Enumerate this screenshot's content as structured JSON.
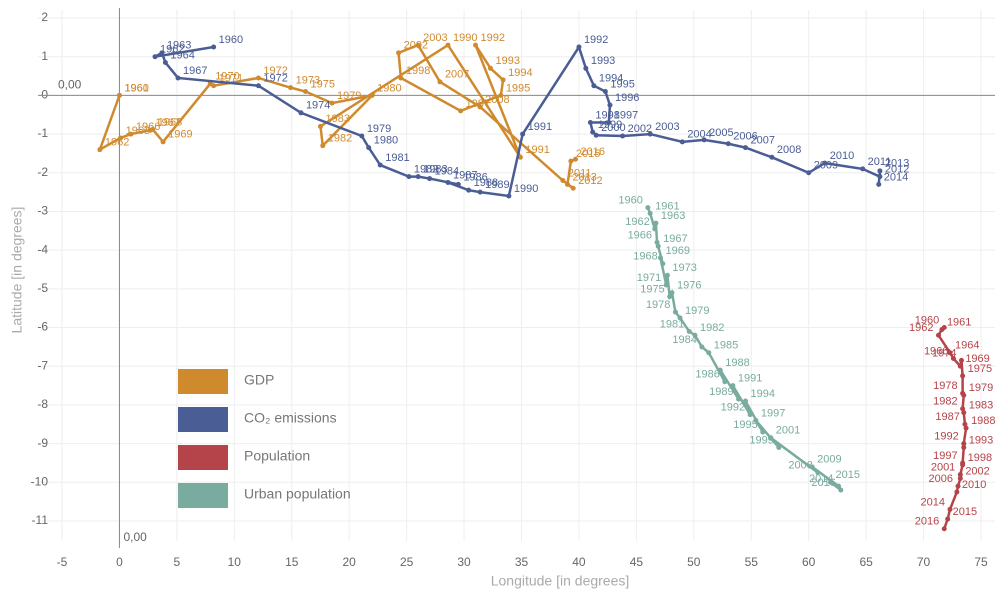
{
  "chart_data": {
    "type": "line",
    "x_label": "Longitude [in degrees]",
    "y_label": "Latitude [in degrees]",
    "xlim": [
      -5,
      75
    ],
    "ylim": [
      -11,
      2
    ],
    "xticks": [
      -5,
      0,
      5,
      10,
      15,
      20,
      25,
      30,
      35,
      40,
      45,
      50,
      55,
      60,
      65,
      70,
      75
    ],
    "yticks": [
      -11,
      -10,
      -9,
      -8,
      -7,
      -6,
      -5,
      -4,
      -3,
      -2,
      -1,
      0,
      1,
      2
    ],
    "grid": true,
    "reference_lines": {
      "x": {
        "value": 0,
        "label": "0,00"
      },
      "y": {
        "value": 0,
        "label": "0,00"
      }
    },
    "legend": "bottom-left",
    "series": [
      {
        "name": "GDP",
        "color": "#d08a2e",
        "labels": [
          "1960",
          "1961",
          "1962",
          "1963",
          "1966",
          "1967",
          "1968",
          "1969",
          "1970",
          "1971",
          "1972",
          "1973",
          "1975",
          "1979",
          "1980",
          "1982",
          "1983",
          "1990",
          "1991",
          "1992",
          "1993",
          "1994",
          "1995",
          "1997",
          "1998",
          "2002",
          "2003",
          "2007",
          "2008",
          "2011",
          "2012",
          "2013",
          "2015",
          "2016"
        ],
        "x": [
          0,
          0,
          -1.7,
          0.1,
          1,
          2.7,
          2.9,
          3.8,
          7.9,
          8.2,
          12.1,
          14.9,
          16.2,
          18.5,
          22,
          17.7,
          17.5,
          28.6,
          34.9,
          31,
          32.3,
          33.4,
          33.2,
          29.7,
          24.5,
          24.3,
          26,
          27.9,
          31.4,
          38.6,
          39.5,
          39,
          39.3,
          39.7
        ],
        "y": [
          0,
          0,
          -1.4,
          -1.1,
          -1.0,
          -0.9,
          -0.88,
          -1.2,
          0.3,
          0.25,
          0.45,
          0.2,
          0.1,
          -0.2,
          0,
          -1.3,
          -0.8,
          1.3,
          -1.6,
          1.3,
          0.7,
          0.4,
          0,
          -0.4,
          0.45,
          1.1,
          1.3,
          0.35,
          -0.3,
          -2.2,
          -2.4,
          -2.3,
          -1.7,
          -1.65
        ]
      },
      {
        "name": "CO₂ emissions",
        "color": "#4a5d94",
        "labels": [
          "1960",
          "1962",
          "1963",
          "1964",
          "1967",
          "1972",
          "1974",
          "1979",
          "1980",
          "1981",
          "1982",
          "1983",
          "1984",
          "1986",
          "1987",
          "1988",
          "1989",
          "1990",
          "1991",
          "1992",
          "1993",
          "1994",
          "1995",
          "1996",
          "1997",
          "1998",
          "1999",
          "2000",
          "2002",
          "2003",
          "2004",
          "2005",
          "2006",
          "2007",
          "2008",
          "2009",
          "2010",
          "2011",
          "2012",
          "2013",
          "2014"
        ],
        "x": [
          8.2,
          3.1,
          3.7,
          4,
          5.1,
          12.1,
          15.8,
          21.1,
          21.7,
          22.7,
          25.2,
          26,
          27,
          29.5,
          28.6,
          30.4,
          31.4,
          33.9,
          35.1,
          40,
          40.6,
          41.3,
          42.3,
          42.7,
          42.6,
          41,
          41.2,
          41.5,
          43.8,
          46.2,
          49,
          50.9,
          53,
          54.5,
          56.8,
          60,
          61.4,
          64.7,
          66.2,
          66.2,
          66.1
        ],
        "y": [
          1.25,
          1.0,
          1.1,
          0.85,
          0.45,
          0.25,
          -0.45,
          -1.05,
          -1.35,
          -1.8,
          -2.1,
          -2.1,
          -2.15,
          -2.3,
          -2.25,
          -2.45,
          -2.5,
          -2.6,
          -1.0,
          1.25,
          0.7,
          0.25,
          0.1,
          -0.25,
          -0.7,
          -0.7,
          -0.95,
          -1.03,
          -1.05,
          -1.0,
          -1.2,
          -1.15,
          -1.25,
          -1.35,
          -1.6,
          -2.0,
          -1.75,
          -1.9,
          -2.1,
          -1.95,
          -2.3
        ]
      },
      {
        "name": "Population",
        "color": "#b5444a",
        "labels": [
          "1960",
          "1961",
          "1962",
          "1964",
          "1966",
          "1969",
          "1974",
          "1975",
          "1978",
          "1979",
          "1982",
          "1983",
          "1987",
          "1988",
          "1992",
          "1993",
          "1997",
          "1998",
          "2001",
          "2002",
          "2006",
          "2010",
          "2014",
          "2015",
          "2016"
        ],
        "x": [
          71.8,
          71.6,
          71.3,
          72.3,
          72.6,
          73.2,
          73.3,
          73.4,
          73.4,
          73.5,
          73.4,
          73.5,
          73.6,
          73.7,
          73.5,
          73.5,
          73.4,
          73.4,
          73.2,
          73.2,
          73.0,
          72.9,
          72.3,
          72.1,
          71.8
        ],
        "y": [
          -6.0,
          -6.05,
          -6.2,
          -6.65,
          -6.8,
          -7.0,
          -6.85,
          -7.25,
          -7.7,
          -7.75,
          -8.1,
          -8.2,
          -8.5,
          -8.6,
          -9.0,
          -9.1,
          -9.5,
          -9.55,
          -9.8,
          -9.9,
          -10.1,
          -10.25,
          -10.7,
          -10.95,
          -11.2
        ]
      },
      {
        "name": "Urban population",
        "color": "#7aab9f",
        "labels": [
          "1960",
          "1961",
          "1962",
          "1963",
          "1966",
          "1967",
          "1968",
          "1969",
          "1971",
          "1973",
          "1975",
          "1976",
          "1978",
          "1979",
          "1981",
          "1982",
          "1984",
          "1985",
          "1986",
          "1988",
          "1989",
          "1991",
          "1992",
          "1994",
          "1995",
          "1997",
          "1999",
          "2001",
          "2008",
          "2009",
          "2014",
          "2015",
          "2016"
        ],
        "x": [
          46,
          46.2,
          46.6,
          46.7,
          46.8,
          46.9,
          47.3,
          47.1,
          47.6,
          47.7,
          47.9,
          48.1,
          48.4,
          48.8,
          49.6,
          50.1,
          50.7,
          51.3,
          52.7,
          52.3,
          53.9,
          53.4,
          54.9,
          54.5,
          56,
          55.4,
          57.4,
          56.7,
          60.8,
          60.3,
          62.6,
          61.9,
          62.8
        ],
        "y": [
          -2.9,
          -3.05,
          -3.45,
          -3.3,
          -3.8,
          -3.9,
          -4.35,
          -4.2,
          -4.9,
          -4.65,
          -5.2,
          -5.1,
          -5.6,
          -5.75,
          -6.1,
          -6.2,
          -6.5,
          -6.65,
          -7.4,
          -7.1,
          -7.85,
          -7.5,
          -8.25,
          -7.9,
          -8.7,
          -8.4,
          -9.1,
          -8.85,
          -9.75,
          -9.6,
          -10.1,
          -10.0,
          -10.2
        ]
      }
    ]
  }
}
